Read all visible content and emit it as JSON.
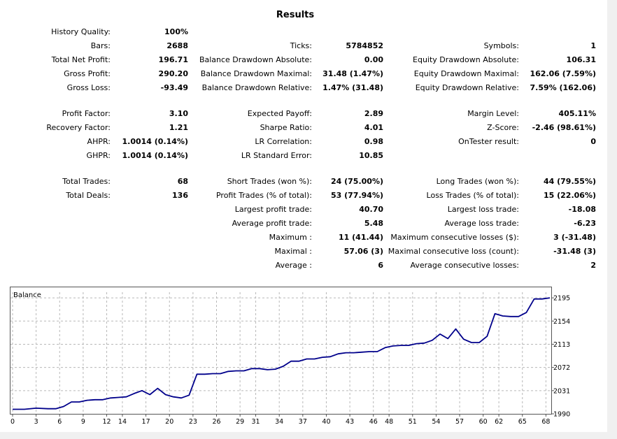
{
  "title": "Results",
  "colors": {
    "balance_line": "#00008b",
    "grid": "#b8b8b8",
    "frame": "#555555"
  },
  "stats": {
    "history_quality": {
      "label": "History Quality:",
      "value": "100%"
    },
    "bars": {
      "label": "Bars:",
      "value": "2688"
    },
    "ticks": {
      "label": "Ticks:",
      "value": "5784852"
    },
    "symbols": {
      "label": "Symbols:",
      "value": "1"
    },
    "total_net_profit": {
      "label": "Total Net Profit:",
      "value": "196.71"
    },
    "balance_dd_abs": {
      "label": "Balance Drawdown Absolute:",
      "value": "0.00"
    },
    "equity_dd_abs": {
      "label": "Equity Drawdown Absolute:",
      "value": "106.31"
    },
    "gross_profit": {
      "label": "Gross Profit:",
      "value": "290.20"
    },
    "balance_dd_max": {
      "label": "Balance Drawdown Maximal:",
      "value": "31.48 (1.47%)"
    },
    "equity_dd_max": {
      "label": "Equity Drawdown Maximal:",
      "value": "162.06 (7.59%)"
    },
    "gross_loss": {
      "label": "Gross Loss:",
      "value": "-93.49"
    },
    "balance_dd_rel": {
      "label": "Balance Drawdown Relative:",
      "value": "1.47% (31.48)"
    },
    "equity_dd_rel": {
      "label": "Equity Drawdown Relative:",
      "value": "7.59% (162.06)"
    },
    "profit_factor": {
      "label": "Profit Factor:",
      "value": "3.10"
    },
    "expected_payoff": {
      "label": "Expected Payoff:",
      "value": "2.89"
    },
    "margin_level": {
      "label": "Margin Level:",
      "value": "405.11%"
    },
    "recovery_factor": {
      "label": "Recovery Factor:",
      "value": "1.21"
    },
    "sharpe_ratio": {
      "label": "Sharpe Ratio:",
      "value": "4.01"
    },
    "z_score": {
      "label": "Z-Score:",
      "value": "-2.46 (98.61%)"
    },
    "ahpr": {
      "label": "AHPR:",
      "value": "1.0014 (0.14%)"
    },
    "lr_correlation": {
      "label": "LR Correlation:",
      "value": "0.98"
    },
    "ontester_result": {
      "label": "OnTester result:",
      "value": "0"
    },
    "ghpr": {
      "label": "GHPR:",
      "value": "1.0014 (0.14%)"
    },
    "lr_std_error": {
      "label": "LR Standard Error:",
      "value": "10.85"
    },
    "total_trades": {
      "label": "Total Trades:",
      "value": "68"
    },
    "short_trades": {
      "label": "Short Trades (won %):",
      "value": "24 (75.00%)"
    },
    "long_trades": {
      "label": "Long Trades (won %):",
      "value": "44 (79.55%)"
    },
    "total_deals": {
      "label": "Total Deals:",
      "value": "136"
    },
    "profit_trades": {
      "label": "Profit Trades (% of total):",
      "value": "53 (77.94%)"
    },
    "loss_trades": {
      "label": "Loss Trades (% of total):",
      "value": "15 (22.06%)"
    },
    "largest_profit": {
      "label": "Largest profit trade:",
      "value": "40.70"
    },
    "largest_loss": {
      "label": "Largest loss trade:",
      "value": "-18.08"
    },
    "average_profit": {
      "label": "Average profit trade:",
      "value": "5.48"
    },
    "average_loss": {
      "label": "Average loss trade:",
      "value": "-6.23"
    },
    "maximum": {
      "label": "Maximum :",
      "value": "11 (41.44)"
    },
    "max_consec_losses": {
      "label": "Maximum consecutive losses ($):",
      "value": "3 (-31.48)"
    },
    "maximal": {
      "label": "Maximal :",
      "value": "57.06 (3)"
    },
    "maximal_consec_loss": {
      "label": "Maximal consecutive loss (count):",
      "value": "-31.48 (3)"
    },
    "average": {
      "label": "Average :",
      "value": "6"
    },
    "average_consec_losses": {
      "label": "Average consecutive losses:",
      "value": "2"
    }
  },
  "chart_data": {
    "type": "line",
    "title": "Balance",
    "xlabel": "",
    "ylabel": "",
    "xlim": [
      0,
      68.5
    ],
    "ylim": [
      1990,
      2205
    ],
    "grid": true,
    "x_ticks": [
      0,
      3,
      6,
      9,
      12,
      14,
      17,
      20,
      23,
      26,
      29,
      31,
      34,
      37,
      40,
      43,
      46,
      48,
      51,
      54,
      57,
      60,
      62,
      65,
      68
    ],
    "y_ticks": [
      1990,
      2031,
      2072,
      2113,
      2154,
      2195
    ],
    "series": [
      {
        "x": [
          0,
          1.5,
          3,
          4.5,
          5.5,
          6.5,
          7.5,
          8.5,
          9.5,
          10.5,
          11.5,
          12.5,
          13.5,
          14.5,
          15.5,
          16.5,
          17.5,
          18.5,
          19.5,
          20.5,
          21.5,
          22.5,
          23.5,
          24.5,
          25.5,
          26.5,
          27.5,
          28.5,
          29.5,
          30.5,
          31.5,
          32.5,
          33.5,
          34.5,
          35.5,
          36.5,
          37.5,
          38.5,
          39.5,
          40.5,
          41.5,
          42.5,
          43.5,
          44.5,
          45.5,
          46.5,
          47.5,
          48.5,
          49.5,
          50.5,
          51.5,
          52.5,
          53.5,
          54.5,
          55.5,
          56.5,
          57.5,
          58.5,
          59.5,
          60.5,
          61.5,
          62.5,
          63.5,
          64.5,
          65.5,
          66.5,
          67.5,
          68.5
        ],
        "values": [
          1998,
          1998,
          2000,
          1999,
          1999,
          2003,
          2011,
          2011,
          2014,
          2015,
          2015,
          2018,
          2019,
          2020,
          2026,
          2031,
          2024,
          2035,
          2024,
          2020,
          2018,
          2023,
          2060,
          2060,
          2061,
          2061,
          2065,
          2066,
          2066,
          2070,
          2070,
          2068,
          2069,
          2074,
          2083,
          2083,
          2087,
          2087,
          2090,
          2091,
          2096,
          2098,
          2098,
          2099,
          2100,
          2100,
          2107,
          2110,
          2111,
          2111,
          2114,
          2115,
          2120,
          2131,
          2123,
          2140,
          2122,
          2116,
          2116,
          2127,
          2167,
          2163,
          2162,
          2162,
          2169,
          2193,
          2193,
          2195
        ]
      }
    ]
  }
}
